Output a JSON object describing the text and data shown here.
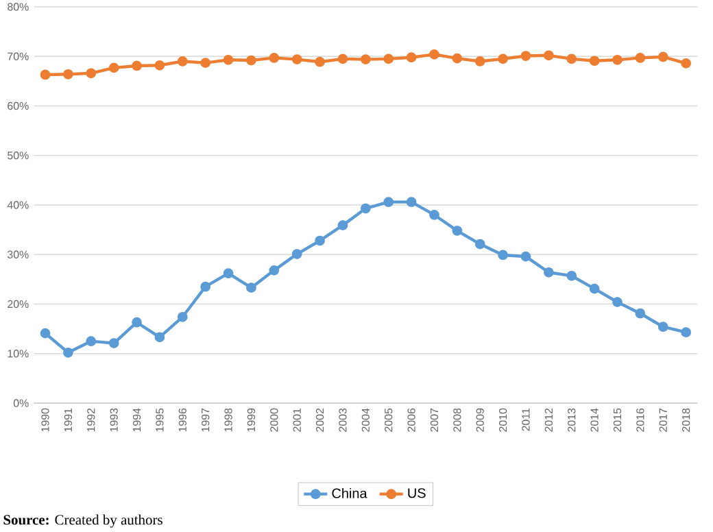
{
  "chart_data": {
    "type": "line",
    "categories": [
      "1990",
      "1991",
      "1992",
      "1993",
      "1994",
      "1995",
      "1996",
      "1997",
      "1998",
      "1999",
      "2000",
      "2001",
      "2002",
      "2003",
      "2004",
      "2005",
      "2006",
      "2007",
      "2008",
      "2009",
      "2010",
      "2011",
      "2012",
      "2013",
      "2014",
      "2015",
      "2016",
      "2017",
      "2018"
    ],
    "series": [
      {
        "name": "China",
        "color": "#5b9bd5",
        "values": [
          14.1,
          10.2,
          12.5,
          12.1,
          16.3,
          13.3,
          17.4,
          23.5,
          26.2,
          23.3,
          26.8,
          30.1,
          32.8,
          35.9,
          39.3,
          40.6,
          40.6,
          38.0,
          34.8,
          32.1,
          29.9,
          29.6,
          26.4,
          25.7,
          23.1,
          20.4,
          18.1,
          15.4,
          14.3
        ]
      },
      {
        "name": "US",
        "color": "#ed7d31",
        "values": [
          66.3,
          66.4,
          66.6,
          67.7,
          68.1,
          68.2,
          69.0,
          68.7,
          69.3,
          69.2,
          69.7,
          69.4,
          68.9,
          69.5,
          69.4,
          69.5,
          69.8,
          70.4,
          69.6,
          69.0,
          69.5,
          70.1,
          70.2,
          69.5,
          69.1,
          69.3,
          69.7,
          69.9,
          68.6
        ]
      }
    ],
    "ylim": [
      0,
      80
    ],
    "yticks": [
      {
        "value": 0,
        "label": "0%"
      },
      {
        "value": 10,
        "label": "10%"
      },
      {
        "value": 20,
        "label": "20%"
      },
      {
        "value": 30,
        "label": "30%"
      },
      {
        "value": 40,
        "label": "40%"
      },
      {
        "value": 50,
        "label": "50%"
      },
      {
        "value": 60,
        "label": "60%"
      },
      {
        "value": 70,
        "label": "70%"
      },
      {
        "value": 80,
        "label": "80%"
      }
    ],
    "grid": "y",
    "legend": "bottom",
    "marker": "circle",
    "line_style": "solid",
    "annotations": [
      "**Source:** Created by authors"
    ]
  }
}
